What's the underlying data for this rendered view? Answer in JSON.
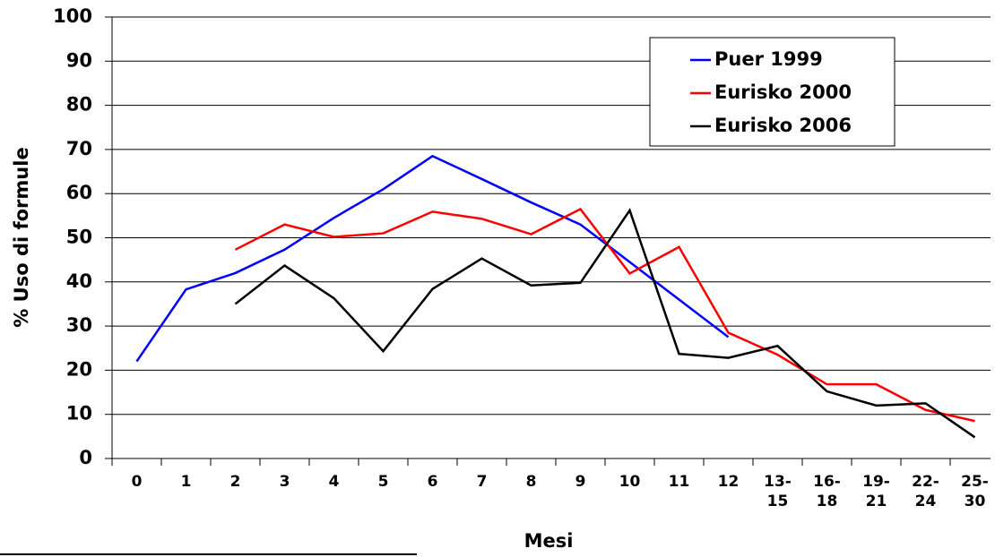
{
  "chart_data": {
    "type": "line",
    "x_label": "Mesi",
    "y_label": "% Uso di formule",
    "categories": [
      "0",
      "1",
      "2",
      "3",
      "4",
      "5",
      "6",
      "7",
      "8",
      "9",
      "10",
      "11",
      "12",
      "13-\n15",
      "16-\n18",
      "19-\n21",
      "22-\n24",
      "25-\n30"
    ],
    "series": [
      {
        "name": "Puer 1999",
        "color": "#0000ff",
        "values": [
          22,
          38.3,
          42,
          47.3,
          54.5,
          61,
          68.5,
          63.3,
          58,
          53,
          44.5,
          36,
          27.5,
          null,
          null,
          null,
          null,
          null
        ]
      },
      {
        "name": "Eurisko 2000",
        "color": "#ff0000",
        "values": [
          null,
          null,
          47.3,
          53,
          50.2,
          51,
          55.9,
          54.3,
          50.8,
          56.5,
          41.9,
          47.9,
          28.5,
          23.5,
          16.8,
          16.8,
          11,
          8.5
        ]
      },
      {
        "name": "Eurisko 2006",
        "color": "#000000",
        "values": [
          null,
          null,
          35,
          43.7,
          36.3,
          24.3,
          38.4,
          45.3,
          39.2,
          39.8,
          56.2,
          23.7,
          22.8,
          25.5,
          15.2,
          12,
          12.5,
          4.8
        ]
      }
    ],
    "ylim": [
      0,
      100
    ],
    "yticks": [
      0,
      10,
      20,
      30,
      40,
      50,
      60,
      70,
      80,
      90,
      100
    ],
    "grid": true,
    "legend": "upper right"
  }
}
